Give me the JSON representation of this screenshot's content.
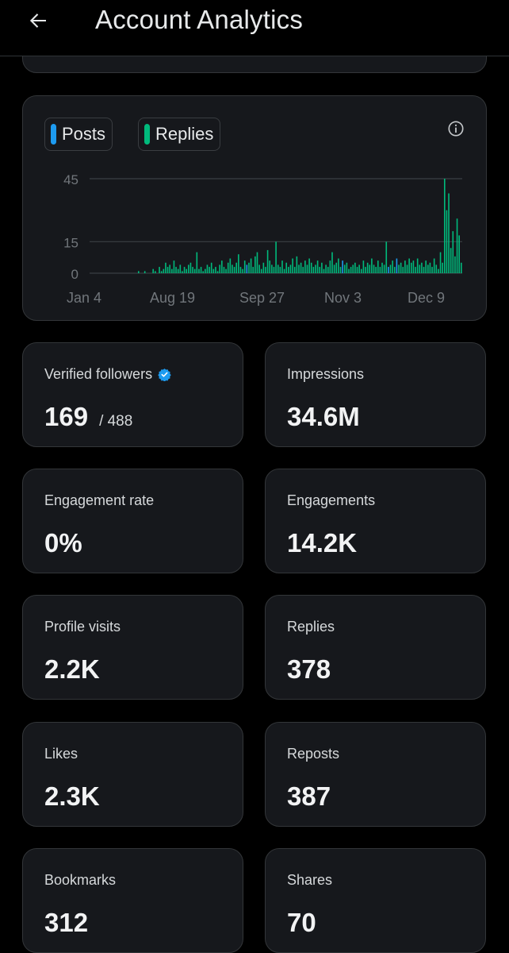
{
  "header": {
    "title": "Account Analytics",
    "back_icon": "arrow-left-icon"
  },
  "chart": {
    "legend": [
      {
        "label": "Posts",
        "color": "#1d9bf0"
      },
      {
        "label": "Replies",
        "color": "#00ba7c"
      }
    ],
    "info_icon": "info-icon"
  },
  "chart_data": {
    "type": "bar",
    "series": [
      {
        "name": "Posts",
        "color": "#1d9bf0"
      },
      {
        "name": "Replies",
        "color": "#00ba7c"
      }
    ],
    "y_ticks": [
      "45",
      "15",
      "0"
    ],
    "x_ticks": [
      "Jan 4",
      "Aug 19",
      "Sep 27",
      "Nov 3",
      "Dec 9"
    ],
    "ylim": [
      0,
      45
    ],
    "values": [
      1,
      0,
      0,
      1,
      0,
      0,
      0,
      2,
      1,
      0,
      3,
      1,
      2,
      5,
      3,
      4,
      2,
      6,
      3,
      2,
      4,
      1,
      3,
      2,
      4,
      5,
      3,
      2,
      10,
      2,
      3,
      1,
      2,
      4,
      3,
      5,
      2,
      3,
      1,
      4,
      6,
      3,
      2,
      5,
      7,
      4,
      3,
      5,
      9,
      3,
      2,
      6,
      4,
      5,
      7,
      3,
      8,
      10,
      4,
      2,
      5,
      3,
      11,
      6,
      4,
      3,
      15,
      4,
      3,
      6,
      2,
      5,
      3,
      4,
      7,
      3,
      8,
      4,
      5,
      3,
      6,
      4,
      7,
      5,
      3,
      4,
      6,
      3,
      5,
      2,
      4,
      3,
      6,
      10,
      4,
      5,
      7,
      3,
      6,
      4,
      5,
      2,
      3,
      4,
      5,
      3,
      4,
      2,
      6,
      3,
      5,
      4,
      7,
      4,
      3,
      6,
      3,
      5,
      4,
      15,
      3,
      4,
      6,
      3,
      7,
      4,
      5,
      3,
      6,
      4,
      7,
      5,
      6,
      3,
      7,
      4,
      5,
      3,
      6,
      4,
      5,
      3,
      7,
      4,
      2,
      10,
      5,
      45,
      30,
      38,
      12,
      20,
      8,
      26,
      18,
      5
    ],
    "post_indices": [
      52,
      98,
      120,
      124
    ],
    "grid": true
  },
  "stats": [
    {
      "label": "Verified followers",
      "value": "169",
      "sub": "/ 488",
      "verified": true
    },
    {
      "label": "Impressions",
      "value": "34.6M"
    },
    {
      "label": "Engagement rate",
      "value": "0%"
    },
    {
      "label": "Engagements",
      "value": "14.2K"
    },
    {
      "label": "Profile visits",
      "value": "2.2K"
    },
    {
      "label": "Replies",
      "value": "378"
    },
    {
      "label": "Likes",
      "value": "2.3K"
    },
    {
      "label": "Reposts",
      "value": "387"
    },
    {
      "label": "Bookmarks",
      "value": "312"
    },
    {
      "label": "Shares",
      "value": "70"
    }
  ]
}
